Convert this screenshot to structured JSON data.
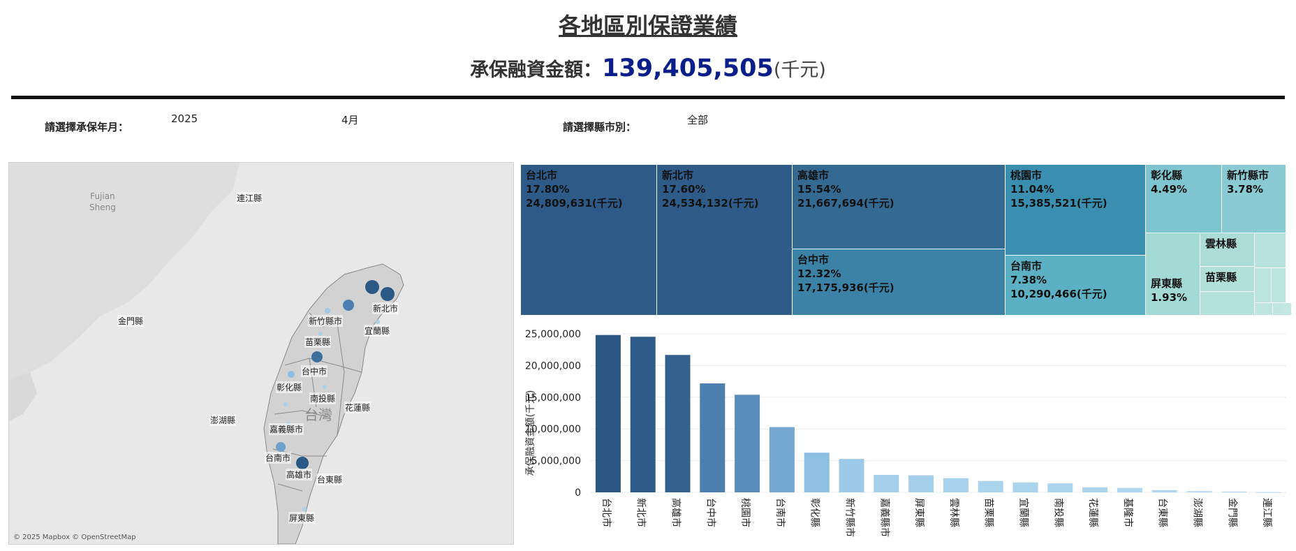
{
  "page_title": "各地區別保證業績",
  "amount": {
    "label": "承保融資金額：",
    "value": "139,405,505",
    "unit": "(千元)"
  },
  "filters": {
    "year_month_label": "請選擇承保年月：",
    "year": "2025",
    "month": "4月",
    "county_label": "請選擇縣市別：",
    "county": "全部"
  },
  "map": {
    "credit": "© 2025 Mapbox © OpenStreetMap",
    "labels": [
      "Fujian Sheng",
      "連江縣",
      "金門縣",
      "澎湖縣",
      "台灣",
      "新竹縣市",
      "新北市",
      "宜蘭縣",
      "苗栗縣",
      "台中市",
      "彰化縣",
      "南投縣",
      "花蓮縣",
      "嘉義縣市",
      "台南市",
      "高雄市",
      "台東縣",
      "屏東縣"
    ],
    "colors": {
      "dark": "#2b5986",
      "mid": "#4a7fb0",
      "light": "#9ec9e6"
    }
  },
  "treemap": [
    {
      "name": "台北市",
      "pct": "17.80%",
      "amount": "24,809,631(千元)",
      "color": "#2e5a88"
    },
    {
      "name": "新北市",
      "pct": "17.60%",
      "amount": "24,534,132(千元)",
      "color": "#2f5b88"
    },
    {
      "name": "高雄市",
      "pct": "15.54%",
      "amount": "21,667,694(千元)",
      "color": "#346992"
    },
    {
      "name": "台中市",
      "pct": "12.32%",
      "amount": "17,175,936(千元)",
      "color": "#3c82a6"
    },
    {
      "name": "桃園市",
      "pct": "11.04%",
      "amount": "15,385,521(千元)",
      "color": "#3a8eb0"
    },
    {
      "name": "台南市",
      "pct": "7.38%",
      "amount": "10,290,466(千元)",
      "color": "#5cb0c3"
    },
    {
      "name": "彰化縣",
      "pct": "4.49%",
      "amount": "",
      "color": "#7fc5cf"
    },
    {
      "name": "新竹縣市",
      "pct": "3.78%",
      "amount": "",
      "color": "#8acad3"
    },
    {
      "name": "屏東縣",
      "pct": "1.93%",
      "amount": "",
      "color": "#a4dad6"
    },
    {
      "name": "雲林縣",
      "pct": "",
      "amount": "",
      "color": "#addcd8"
    },
    {
      "name": "苗栗縣",
      "pct": "",
      "amount": "",
      "color": "#b1dfda"
    }
  ],
  "chart_data": {
    "type": "bar",
    "ylabel": "承保融資金額(千元)",
    "ylim": [
      0,
      25000000
    ],
    "yticks": [
      "0",
      "5,000,000",
      "10,000,000",
      "15,000,000",
      "20,000,000",
      "25,000,000"
    ],
    "grid": true,
    "categories": [
      "台北市",
      "新北市",
      "高雄市",
      "台中市",
      "桃園市",
      "台南市",
      "彰化縣",
      "新竹縣市",
      "嘉義縣市",
      "屏東縣",
      "雲林縣",
      "苗栗縣",
      "宜蘭縣",
      "南投縣",
      "花蓮縣",
      "基隆市",
      "台東縣",
      "澎湖縣",
      "金門縣",
      "連江縣"
    ],
    "values": [
      24809631,
      24534132,
      21667694,
      17175936,
      15385521,
      10290466,
      6260000,
      5270000,
      2750000,
      2690000,
      2230000,
      1800000,
      1560000,
      1410000,
      780000,
      700000,
      350000,
      190000,
      120000,
      30000
    ],
    "colors": [
      "#2c5784",
      "#2e5a87",
      "#33628f",
      "#4b7fb0",
      "#5a8cba",
      "#74a8d2",
      "#8dbfe2",
      "#9dcae8",
      "#a5cfea",
      "#a5cfea",
      "#a8d1ec",
      "#aad3ec",
      "#aad3ec",
      "#abd4ed",
      "#acd5ed",
      "#aed6ee",
      "#afd7ee",
      "#b0d8ef",
      "#b0d8ef",
      "#b1d8ef"
    ]
  }
}
